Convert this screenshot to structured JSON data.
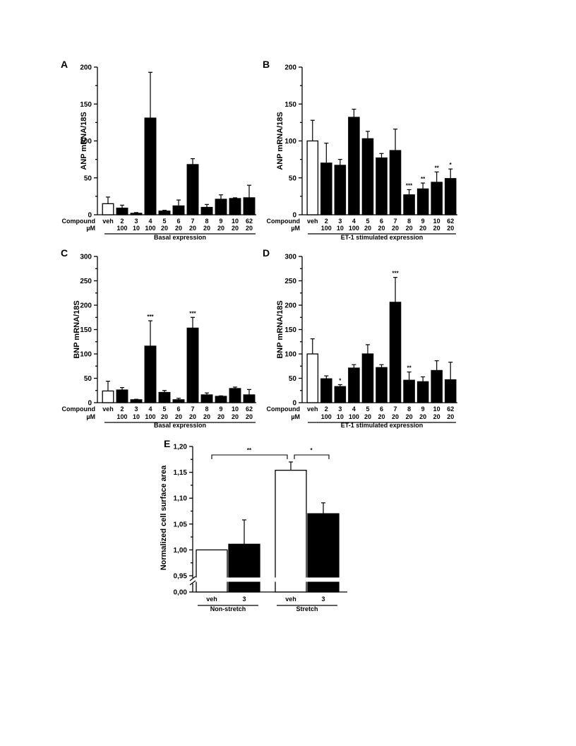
{
  "chart_data": [
    {
      "type": "bar",
      "panel": "A",
      "ylabel": "ANP mRNA/18S",
      "ylim": [
        0,
        200
      ],
      "yticks": [
        0,
        50,
        100,
        150,
        200
      ],
      "row_labels": [
        "Compound",
        "µM"
      ],
      "compounds": [
        "veh",
        "2",
        "3",
        "4",
        "5",
        "6",
        "7",
        "8",
        "9",
        "10",
        "62"
      ],
      "doses": [
        "",
        "100",
        "10",
        "100",
        "20",
        "20",
        "20",
        "20",
        "20",
        "20",
        "20"
      ],
      "values": [
        15,
        9,
        2,
        131,
        5,
        12,
        68,
        10,
        21,
        22,
        23
      ],
      "errors": [
        9,
        4,
        1,
        62,
        1,
        8,
        8,
        4,
        6,
        1,
        17
      ],
      "significance": [
        "",
        "",
        "",
        "",
        "",
        "",
        "",
        "",
        "",
        "",
        ""
      ],
      "fills": [
        "#ffffff",
        "#000000",
        "#000000",
        "#000000",
        "#000000",
        "#000000",
        "#000000",
        "#000000",
        "#000000",
        "#000000",
        "#000000"
      ],
      "group_label": "Basal expression"
    },
    {
      "type": "bar",
      "panel": "B",
      "ylabel": "ANP mRNA/18S",
      "ylim": [
        0,
        200
      ],
      "yticks": [
        0,
        50,
        100,
        150,
        200
      ],
      "row_labels": [
        "Compound",
        "µM"
      ],
      "compounds": [
        "veh",
        "2",
        "3",
        "4",
        "5",
        "6",
        "7",
        "8",
        "9",
        "10",
        "62"
      ],
      "doses": [
        "",
        "100",
        "10",
        "100",
        "20",
        "20",
        "20",
        "20",
        "20",
        "20",
        "20"
      ],
      "values": [
        100,
        70,
        67,
        132,
        103,
        77,
        87,
        27,
        35,
        44,
        49
      ],
      "errors": [
        28,
        27,
        8,
        11,
        10,
        6,
        29,
        7,
        8,
        14,
        13
      ],
      "significance": [
        "",
        "",
        "",
        "",
        "",
        "",
        "",
        "***",
        "**",
        "**",
        "*"
      ],
      "fills": [
        "#ffffff",
        "#000000",
        "#000000",
        "#000000",
        "#000000",
        "#000000",
        "#000000",
        "#000000",
        "#000000",
        "#000000",
        "#000000"
      ],
      "group_label": "ET-1 stimulated expression"
    },
    {
      "type": "bar",
      "panel": "C",
      "ylabel": "BNP mRNA/18S",
      "ylim": [
        0,
        300
      ],
      "yticks": [
        0,
        50,
        100,
        150,
        200,
        250,
        300
      ],
      "row_labels": [
        "Compound",
        "µM"
      ],
      "compounds": [
        "veh",
        "2",
        "3",
        "4",
        "5",
        "6",
        "7",
        "8",
        "9",
        "10",
        "62"
      ],
      "doses": [
        "",
        "100",
        "10",
        "100",
        "20",
        "20",
        "20",
        "20",
        "20",
        "20",
        "20"
      ],
      "values": [
        24,
        26,
        6,
        116,
        21,
        6,
        153,
        16,
        13,
        29,
        16
      ],
      "errors": [
        20,
        5,
        1,
        52,
        4,
        3,
        22,
        4,
        1,
        3,
        11
      ],
      "significance": [
        "",
        "",
        "",
        "***",
        "",
        "",
        "***",
        "",
        "",
        "",
        ""
      ],
      "fills": [
        "#ffffff",
        "#000000",
        "#000000",
        "#000000",
        "#000000",
        "#000000",
        "#000000",
        "#000000",
        "#000000",
        "#000000",
        "#000000"
      ],
      "group_label": "Basal expression"
    },
    {
      "type": "bar",
      "panel": "D",
      "ylabel": "BNP mRNA/18S",
      "ylim": [
        0,
        300
      ],
      "yticks": [
        0,
        50,
        100,
        150,
        200,
        250,
        300
      ],
      "row_labels": [
        "Compound",
        "µM"
      ],
      "compounds": [
        "veh",
        "2",
        "3",
        "4",
        "5",
        "6",
        "7",
        "8",
        "9",
        "10",
        "62"
      ],
      "doses": [
        "",
        "100",
        "10",
        "100",
        "20",
        "20",
        "20",
        "20",
        "20",
        "20",
        "20"
      ],
      "values": [
        100,
        49,
        33,
        71,
        100,
        72,
        206,
        46,
        43,
        66,
        47
      ],
      "errors": [
        31,
        6,
        4,
        7,
        19,
        6,
        51,
        17,
        10,
        20,
        36
      ],
      "significance": [
        "",
        "",
        "*",
        "",
        "",
        "",
        "***",
        "**",
        "",
        "",
        ""
      ],
      "fills": [
        "#ffffff",
        "#000000",
        "#000000",
        "#000000",
        "#000000",
        "#000000",
        "#000000",
        "#000000",
        "#000000",
        "#000000",
        "#000000"
      ],
      "group_label": "ET-1 stimulated expression"
    },
    {
      "type": "bar",
      "panel": "E",
      "ylabel": "Normalized cell surface area",
      "ylim": [
        0.95,
        1.2
      ],
      "axis_break": true,
      "yticks": [
        "0,00",
        "0,95",
        "1,00",
        "1,05",
        "1,10",
        "1,15",
        "1,20"
      ],
      "categories": [
        "veh",
        "3",
        "veh",
        "3"
      ],
      "groups": [
        "Non-stretch",
        "Stretch"
      ],
      "values": [
        1.0,
        1.011,
        1.154,
        1.07
      ],
      "errors": [
        0,
        0.047,
        0.016,
        0.021
      ],
      "fills": [
        "#ffffff",
        "#000000",
        "#ffffff",
        "#000000"
      ],
      "significance_brackets": [
        {
          "from": 0,
          "to": 2,
          "label": "**"
        },
        {
          "from": 2,
          "to": 3,
          "label": "*"
        }
      ]
    }
  ]
}
